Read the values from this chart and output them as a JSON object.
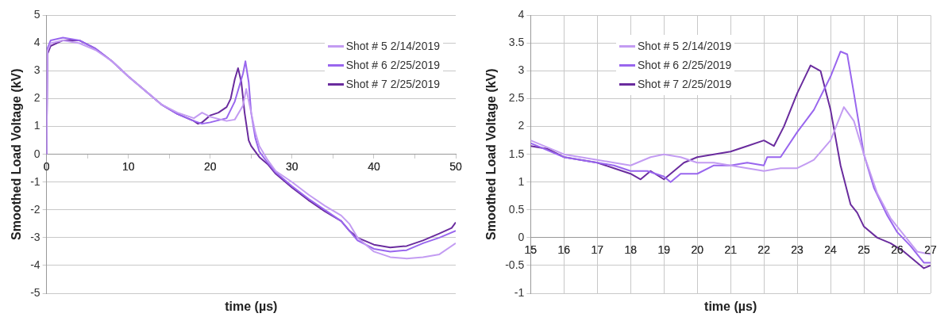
{
  "chart_data": [
    {
      "type": "line",
      "xlabel": "time (µs)",
      "ylabel": "Smoothed Load Voltage (kV)",
      "xlim": [
        0,
        50
      ],
      "xticks": [
        0,
        {
          "value": 5,
          "label": null
        },
        10,
        {
          "value": 15,
          "label": null
        },
        20,
        {
          "value": 25,
          "label": null
        },
        30,
        {
          "value": 35,
          "label": null
        },
        40,
        {
          "value": 45,
          "label": null
        },
        50
      ],
      "ylim": [
        -5,
        5
      ],
      "yticks": [
        -5,
        -4,
        -3,
        -2,
        -1,
        0,
        1,
        2,
        3,
        4,
        5
      ],
      "grid": "y",
      "legend": "top right",
      "marker": "none",
      "line_style": "solid",
      "series": [
        {
          "name": "Shot # 5 2/14/2019",
          "color": "#c39cf2",
          "x": [
            0,
            0.1,
            0.5,
            2,
            4,
            6,
            8,
            10,
            12,
            14,
            16,
            18,
            19,
            20,
            22,
            23,
            24,
            24.4,
            25,
            25.5,
            26,
            27,
            28,
            30,
            32,
            34,
            36,
            37,
            38,
            40,
            42,
            44,
            46,
            48,
            50
          ],
          "values": [
            0,
            3.7,
            4.0,
            4.1,
            4.0,
            3.75,
            3.35,
            2.8,
            2.3,
            1.8,
            1.5,
            1.3,
            1.5,
            1.35,
            1.2,
            1.25,
            1.75,
            2.35,
            1.5,
            0.8,
            0.3,
            -0.2,
            -0.6,
            -1.0,
            -1.45,
            -1.85,
            -2.2,
            -2.5,
            -3.0,
            -3.5,
            -3.7,
            -3.75,
            -3.7,
            -3.6,
            -3.2
          ]
        },
        {
          "name": "Shot # 6 2/25/2019",
          "color": "#9966ee",
          "x": [
            0,
            0.1,
            0.5,
            2,
            4,
            6,
            8,
            10,
            12,
            14,
            16,
            18,
            19,
            20,
            22,
            23,
            24,
            24.3,
            24.7,
            25,
            25.5,
            26,
            27,
            28,
            30,
            32,
            34,
            36,
            38,
            40,
            42,
            44,
            46,
            48,
            50
          ],
          "values": [
            0,
            3.8,
            4.1,
            4.2,
            4.1,
            3.8,
            3.35,
            2.8,
            2.3,
            1.8,
            1.45,
            1.2,
            1.1,
            1.15,
            1.3,
            1.9,
            2.9,
            3.35,
            2.6,
            1.5,
            0.6,
            0.1,
            -0.3,
            -0.65,
            -1.15,
            -1.6,
            -2.0,
            -2.4,
            -3.1,
            -3.4,
            -3.5,
            -3.45,
            -3.2,
            -3.0,
            -2.75
          ]
        },
        {
          "name": "Shot # 7 2/25/2019",
          "color": "#6a2c9e",
          "x": [
            0,
            0.1,
            0.5,
            2,
            4,
            6,
            8,
            10,
            12,
            14,
            16,
            18,
            18.5,
            19,
            20,
            21,
            22,
            22.5,
            23,
            23.4,
            23.8,
            24.2,
            24.7,
            25,
            26,
            27,
            28,
            30,
            32,
            34,
            36,
            37,
            38,
            40,
            42,
            44,
            46,
            48,
            49.5,
            50
          ],
          "values": [
            0,
            3.6,
            3.9,
            4.1,
            4.1,
            3.8,
            3.35,
            2.8,
            2.3,
            1.8,
            1.45,
            1.2,
            1.1,
            1.15,
            1.4,
            1.5,
            1.7,
            2.0,
            2.7,
            3.1,
            2.6,
            1.5,
            0.5,
            0.3,
            -0.1,
            -0.35,
            -0.7,
            -1.2,
            -1.65,
            -2.05,
            -2.4,
            -2.75,
            -3.0,
            -3.25,
            -3.35,
            -3.3,
            -3.1,
            -2.85,
            -2.65,
            -2.45
          ]
        }
      ]
    },
    {
      "type": "line",
      "xlabel": "time (µs)",
      "ylabel": "Smoothed Load Voltage (kV)",
      "xlim": [
        15,
        27
      ],
      "xticks": [
        15,
        16,
        17,
        18,
        19,
        20,
        21,
        22,
        23,
        24,
        25,
        26,
        27
      ],
      "ylim": [
        -1,
        4
      ],
      "yticks": [
        -1,
        -0.5,
        0,
        0.5,
        1,
        1.5,
        2,
        2.5,
        3,
        3.5,
        4
      ],
      "grid": true,
      "legend": "top left",
      "marker": "none",
      "line_style": "solid",
      "series": [
        {
          "name": "Shot # 5 2/14/2019",
          "color": "#c39cf2",
          "x": [
            15,
            16,
            17,
            17.5,
            18,
            18.6,
            19,
            19.5,
            20,
            20.5,
            21,
            21.5,
            22,
            22.5,
            23,
            23.5,
            24,
            24.4,
            24.7,
            25,
            25.4,
            25.8,
            26.2,
            26.6,
            27
          ],
          "values": [
            1.75,
            1.5,
            1.4,
            1.35,
            1.3,
            1.45,
            1.5,
            1.45,
            1.35,
            1.35,
            1.3,
            1.25,
            1.2,
            1.25,
            1.25,
            1.4,
            1.75,
            2.35,
            2.1,
            1.5,
            0.8,
            0.35,
            0.05,
            -0.25,
            -0.3
          ]
        },
        {
          "name": "Shot # 6 2/25/2019",
          "color": "#9966ee",
          "x": [
            15,
            16,
            17,
            17.5,
            18,
            18.5,
            19,
            19.2,
            19.5,
            20,
            20.5,
            21,
            21.5,
            22,
            22.1,
            22.5,
            23,
            23.5,
            24,
            24.3,
            24.5,
            24.7,
            25,
            25.3,
            25.7,
            26,
            26.4,
            26.8,
            27
          ],
          "values": [
            1.7,
            1.45,
            1.35,
            1.3,
            1.2,
            1.2,
            1.1,
            1.0,
            1.15,
            1.15,
            1.3,
            1.3,
            1.35,
            1.3,
            1.45,
            1.45,
            1.9,
            2.3,
            2.9,
            3.35,
            3.3,
            2.6,
            1.5,
            0.9,
            0.4,
            0.1,
            -0.15,
            -0.45,
            -0.45
          ]
        },
        {
          "name": "Shot # 7 2/25/2019",
          "color": "#6a2c9e",
          "x": [
            15,
            15.5,
            16,
            16.5,
            17,
            17.5,
            18,
            18.3,
            18.6,
            19,
            19.3,
            19.6,
            20,
            20.5,
            21,
            21.5,
            22,
            22.3,
            22.6,
            23,
            23.4,
            23.7,
            24,
            24.3,
            24.6,
            24.8,
            25,
            25.4,
            25.8,
            26.2,
            26.6,
            26.8,
            27
          ],
          "values": [
            1.65,
            1.6,
            1.45,
            1.4,
            1.35,
            1.25,
            1.15,
            1.05,
            1.2,
            1.05,
            1.2,
            1.35,
            1.45,
            1.5,
            1.55,
            1.65,
            1.75,
            1.65,
            2.0,
            2.6,
            3.1,
            3.0,
            2.3,
            1.3,
            0.6,
            0.45,
            0.2,
            0.0,
            -0.1,
            -0.25,
            -0.45,
            -0.55,
            -0.5
          ]
        }
      ]
    }
  ]
}
